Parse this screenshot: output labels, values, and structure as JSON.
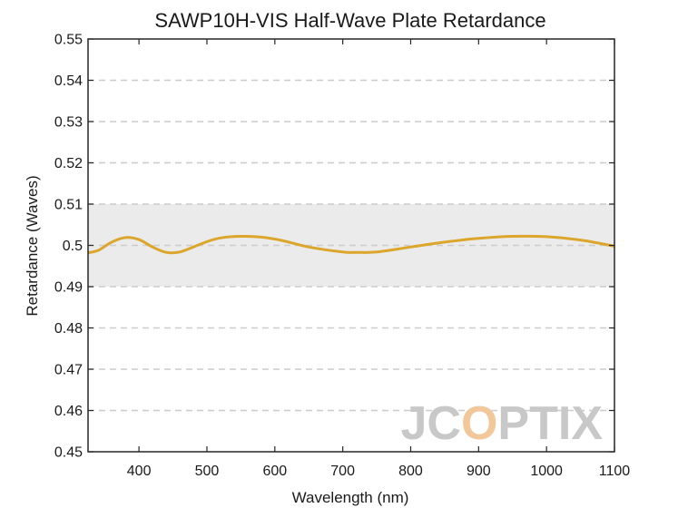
{
  "chart_data": {
    "type": "line",
    "title": "SAWP10H-VIS Half-Wave Plate Retardance",
    "xlabel": "Wavelength (nm)",
    "ylabel": "Retardance (Waves)",
    "xlim": [
      325,
      1100
    ],
    "ylim": [
      0.45,
      0.55
    ],
    "xticks": [
      400,
      500,
      600,
      700,
      800,
      900,
      1000,
      1100
    ],
    "xtick_labels": [
      "400",
      "500",
      "600",
      "700",
      "800",
      "900",
      "1000",
      "1100"
    ],
    "yticks": [
      0.45,
      0.46,
      0.47,
      0.48,
      0.49,
      0.5,
      0.51,
      0.52,
      0.53,
      0.54,
      0.55
    ],
    "ytick_labels": [
      "0.45",
      "0.46",
      "0.47",
      "0.48",
      "0.49",
      "0.5",
      "0.51",
      "0.52",
      "0.53",
      "0.54",
      "0.55"
    ],
    "grid": "horizontal dashed",
    "tolerance_band": [
      0.49,
      0.51
    ],
    "series": [
      {
        "x": [
          325,
          340,
          360,
          380,
          400,
          420,
          440,
          460,
          480,
          500,
          520,
          550,
          580,
          610,
          650,
          700,
          720,
          750,
          800,
          850,
          900,
          950,
          1000,
          1050,
          1100
        ],
        "y": [
          0.4982,
          0.4988,
          0.5008,
          0.5019,
          0.5014,
          0.4996,
          0.4983,
          0.4984,
          0.4996,
          0.5009,
          0.5018,
          0.5022,
          0.502,
          0.5012,
          0.4996,
          0.4984,
          0.4983,
          0.4984,
          0.4996,
          0.5008,
          0.5017,
          0.5022,
          0.5021,
          0.5013,
          0.4998
        ]
      }
    ]
  },
  "colors": {
    "line": "#DBA62B",
    "band": "#EBEBEB",
    "grid": "#CCCCCC",
    "watermark_gray": "#C8C8C8",
    "watermark_accent": "#F2C79A"
  },
  "watermark": {
    "text_left": "JC",
    "text_accent": "O",
    "text_right": "PTIX"
  }
}
